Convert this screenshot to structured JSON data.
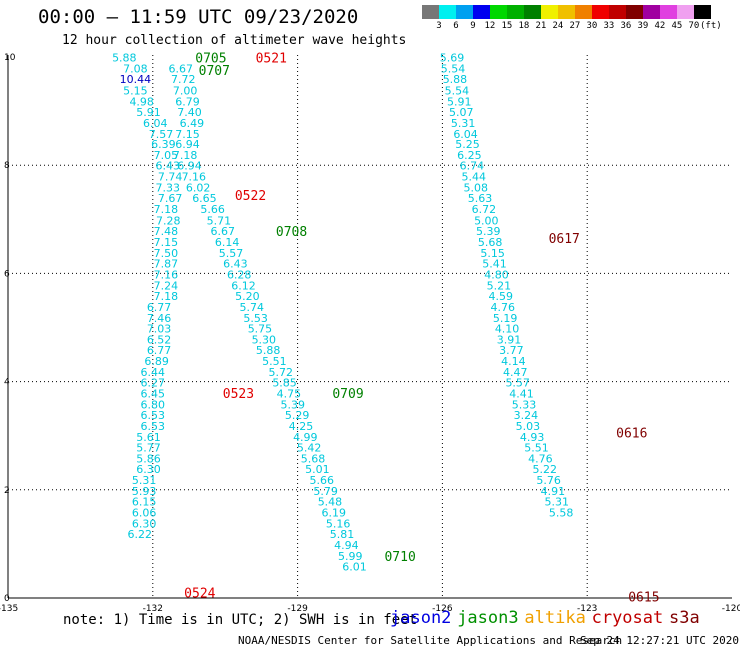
{
  "header": {
    "title": "00:00 – 11:59 UTC 09/23/2020",
    "subtitle": "12 hour collection of altimeter wave heights"
  },
  "legend": {
    "colors": [
      "#777777",
      "#00f0f0",
      "#00a0f0",
      "#0000f0",
      "#00d800",
      "#00b000",
      "#008000",
      "#f0f000",
      "#f0c000",
      "#f08000",
      "#f00000",
      "#c00000",
      "#800000",
      "#a000a0",
      "#e040e0",
      "#f0a0f0",
      "#000000"
    ],
    "labels": [
      "3",
      "6",
      "9",
      "12",
      "15",
      "18",
      "21",
      "24",
      "27",
      "30",
      "33",
      "36",
      "39",
      "42",
      "45",
      "70",
      "(ft)"
    ]
  },
  "note": "note: 1) Time is in UTC; 2) SWH is in feet",
  "satellites": [
    {
      "name": "jason2",
      "color": "#0000e0"
    },
    {
      "name": "jason3",
      "color": "#009000"
    },
    {
      "name": "altika",
      "color": "#f0a000"
    },
    {
      "name": "cryosat",
      "color": "#c00000"
    },
    {
      "name": "s3a",
      "color": "#800000"
    }
  ],
  "footer": {
    "credit": "NOAA/NESDIS Center for Satellite Applications and Research",
    "timestamp": "Sep 24 12:27:21 UTC 2020"
  },
  "chart_data": {
    "type": "scatter",
    "xlim": [
      -135,
      -120
    ],
    "ylim": [
      0,
      10
    ],
    "x_ticks": [
      -135,
      -132,
      -129,
      -126,
      -123,
      -120
    ],
    "y_ticks": [
      0,
      2,
      4,
      6,
      8,
      10
    ],
    "grid": true,
    "tracks": [
      {
        "name": "track-a",
        "points": [
          {
            "x": -132.59,
            "y": 9.99,
            "v": "5.88"
          },
          {
            "x": -132.36,
            "y": 9.79,
            "v": "7.08"
          },
          {
            "x": -132.36,
            "y": 9.59,
            "v": "10.44"
          },
          {
            "x": -132.36,
            "y": 9.38,
            "v": "5.15"
          },
          {
            "x": -132.23,
            "y": 9.18,
            "v": "4.98"
          },
          {
            "x": -132.09,
            "y": 8.98,
            "v": "5.91"
          },
          {
            "x": -131.95,
            "y": 8.78,
            "v": "6.04"
          },
          {
            "x": -131.83,
            "y": 8.58,
            "v": "7.57"
          },
          {
            "x": -131.78,
            "y": 8.39,
            "v": "6.39"
          },
          {
            "x": -131.73,
            "y": 8.19,
            "v": "7.05"
          },
          {
            "x": -131.69,
            "y": 7.99,
            "v": "6.43"
          },
          {
            "x": -131.64,
            "y": 7.79,
            "v": "7.74"
          },
          {
            "x": -131.69,
            "y": 7.59,
            "v": "7.33"
          },
          {
            "x": -131.64,
            "y": 7.39,
            "v": "7.67"
          },
          {
            "x": -131.73,
            "y": 7.19,
            "v": "7.18"
          },
          {
            "x": -131.68,
            "y": 6.98,
            "v": "7.28"
          },
          {
            "x": -131.73,
            "y": 6.78,
            "v": "7.48"
          },
          {
            "x": -131.73,
            "y": 6.58,
            "v": "7.15"
          },
          {
            "x": -131.73,
            "y": 6.38,
            "v": "7.50"
          },
          {
            "x": -131.73,
            "y": 6.18,
            "v": "7.87"
          },
          {
            "x": -131.73,
            "y": 5.98,
            "v": "7.16"
          },
          {
            "x": -131.73,
            "y": 5.78,
            "v": "7.24"
          },
          {
            "x": -131.73,
            "y": 5.58,
            "v": "7.18"
          },
          {
            "x": -131.87,
            "y": 5.38,
            "v": "6.77"
          },
          {
            "x": -131.87,
            "y": 5.18,
            "v": "7.46"
          },
          {
            "x": -131.87,
            "y": 4.98,
            "v": "7.03"
          },
          {
            "x": -131.87,
            "y": 4.78,
            "v": "6.52"
          },
          {
            "x": -131.87,
            "y": 4.58,
            "v": "6.77"
          },
          {
            "x": -131.92,
            "y": 4.38,
            "v": "6.89"
          },
          {
            "x": -132.0,
            "y": 4.18,
            "v": "6.44"
          },
          {
            "x": -132.0,
            "y": 3.98,
            "v": "6.27"
          },
          {
            "x": -132.0,
            "y": 3.78,
            "v": "6.45"
          },
          {
            "x": -132.0,
            "y": 3.58,
            "v": "6.80"
          },
          {
            "x": -132.0,
            "y": 3.38,
            "v": "6.53"
          },
          {
            "x": -132.0,
            "y": 3.18,
            "v": "6.53"
          },
          {
            "x": -132.09,
            "y": 2.98,
            "v": "5.61"
          },
          {
            "x": -132.09,
            "y": 2.78,
            "v": "5.77"
          },
          {
            "x": -132.09,
            "y": 2.58,
            "v": "5.86"
          },
          {
            "x": -132.09,
            "y": 2.38,
            "v": "6.30"
          },
          {
            "x": -132.18,
            "y": 2.18,
            "v": "5.31"
          },
          {
            "x": -132.18,
            "y": 1.98,
            "v": "5.93"
          },
          {
            "x": -132.18,
            "y": 1.78,
            "v": "6.15"
          },
          {
            "x": -132.18,
            "y": 1.58,
            "v": "6.06"
          },
          {
            "x": -132.18,
            "y": 1.38,
            "v": "6.30"
          },
          {
            "x": -132.27,
            "y": 1.18,
            "v": "6.22"
          }
        ]
      },
      {
        "name": "track-b",
        "points": [
          {
            "x": -131.42,
            "y": 9.79,
            "v": "6.67"
          },
          {
            "x": -131.37,
            "y": 9.59,
            "v": "7.72"
          },
          {
            "x": -131.33,
            "y": 9.38,
            "v": "7.00"
          },
          {
            "x": -131.28,
            "y": 9.18,
            "v": "6.79"
          },
          {
            "x": -131.24,
            "y": 8.98,
            "v": "7.40"
          },
          {
            "x": -131.19,
            "y": 8.78,
            "v": "6.49"
          },
          {
            "x": -131.28,
            "y": 8.58,
            "v": "7.15"
          },
          {
            "x": -131.28,
            "y": 8.39,
            "v": "6.94"
          },
          {
            "x": -131.33,
            "y": 8.19,
            "v": "7.18"
          },
          {
            "x": -131.24,
            "y": 7.99,
            "v": "6.94"
          },
          {
            "x": -131.15,
            "y": 7.79,
            "v": "7.16"
          },
          {
            "x": -131.06,
            "y": 7.59,
            "v": "6.02"
          },
          {
            "x": -130.93,
            "y": 7.39,
            "v": "6.65"
          },
          {
            "x": -130.76,
            "y": 7.19,
            "v": "5.66"
          },
          {
            "x": -130.63,
            "y": 6.98,
            "v": "5.71"
          },
          {
            "x": -130.55,
            "y": 6.78,
            "v": "6.67"
          },
          {
            "x": -130.46,
            "y": 6.58,
            "v": "6.14"
          },
          {
            "x": -130.38,
            "y": 6.38,
            "v": "5.57"
          },
          {
            "x": -130.29,
            "y": 6.18,
            "v": "6.43"
          },
          {
            "x": -130.21,
            "y": 5.98,
            "v": "6.28"
          },
          {
            "x": -130.12,
            "y": 5.78,
            "v": "6.12"
          },
          {
            "x": -130.04,
            "y": 5.58,
            "v": "5.20"
          },
          {
            "x": -129.95,
            "y": 5.38,
            "v": "5.74"
          },
          {
            "x": -129.87,
            "y": 5.18,
            "v": "5.53"
          },
          {
            "x": -129.78,
            "y": 4.98,
            "v": "5.75"
          },
          {
            "x": -129.7,
            "y": 4.78,
            "v": "5.30"
          },
          {
            "x": -129.61,
            "y": 4.58,
            "v": "5.88"
          },
          {
            "x": -129.48,
            "y": 4.38,
            "v": "5.51"
          },
          {
            "x": -129.35,
            "y": 4.18,
            "v": "5.72"
          },
          {
            "x": -129.27,
            "y": 3.98,
            "v": "5.85"
          },
          {
            "x": -129.18,
            "y": 3.78,
            "v": "4.75"
          },
          {
            "x": -129.1,
            "y": 3.58,
            "v": "5.39"
          },
          {
            "x": -129.01,
            "y": 3.38,
            "v": "5.29"
          },
          {
            "x": -128.93,
            "y": 3.18,
            "v": "4.25"
          },
          {
            "x": -128.84,
            "y": 2.98,
            "v": "4.99"
          },
          {
            "x": -128.76,
            "y": 2.78,
            "v": "5.42"
          },
          {
            "x": -128.68,
            "y": 2.58,
            "v": "5.68"
          },
          {
            "x": -128.59,
            "y": 2.38,
            "v": "5.01"
          },
          {
            "x": -128.5,
            "y": 2.18,
            "v": "5.66"
          },
          {
            "x": -128.42,
            "y": 1.98,
            "v": "5.79"
          },
          {
            "x": -128.33,
            "y": 1.78,
            "v": "5.48"
          },
          {
            "x": -128.25,
            "y": 1.58,
            "v": "6.19"
          },
          {
            "x": -128.16,
            "y": 1.38,
            "v": "5.16"
          },
          {
            "x": -128.08,
            "y": 1.18,
            "v": "5.81"
          },
          {
            "x": -127.99,
            "y": 0.98,
            "v": "4.94"
          },
          {
            "x": -127.91,
            "y": 0.78,
            "v": "5.99"
          },
          {
            "x": -127.82,
            "y": 0.58,
            "v": "6.01"
          }
        ]
      },
      {
        "name": "track-c",
        "points": [
          {
            "x": -125.8,
            "y": 9.99,
            "v": "5.69"
          },
          {
            "x": -125.78,
            "y": 9.79,
            "v": "5.54"
          },
          {
            "x": -125.74,
            "y": 9.59,
            "v": "5.88"
          },
          {
            "x": -125.7,
            "y": 9.38,
            "v": "5.54"
          },
          {
            "x": -125.65,
            "y": 9.18,
            "v": "5.91"
          },
          {
            "x": -125.61,
            "y": 8.98,
            "v": "5.07"
          },
          {
            "x": -125.57,
            "y": 8.78,
            "v": "5.31"
          },
          {
            "x": -125.52,
            "y": 8.58,
            "v": "6.04"
          },
          {
            "x": -125.48,
            "y": 8.39,
            "v": "5.25"
          },
          {
            "x": -125.44,
            "y": 8.19,
            "v": "6.25"
          },
          {
            "x": -125.39,
            "y": 7.99,
            "v": "6.74"
          },
          {
            "x": -125.35,
            "y": 7.79,
            "v": "5.44"
          },
          {
            "x": -125.31,
            "y": 7.59,
            "v": "5.08"
          },
          {
            "x": -125.22,
            "y": 7.39,
            "v": "5.63"
          },
          {
            "x": -125.14,
            "y": 7.19,
            "v": "6.72"
          },
          {
            "x": -125.09,
            "y": 6.98,
            "v": "5.00"
          },
          {
            "x": -125.05,
            "y": 6.78,
            "v": "5.39"
          },
          {
            "x": -125.01,
            "y": 6.58,
            "v": "5.68"
          },
          {
            "x": -124.96,
            "y": 6.38,
            "v": "5.15"
          },
          {
            "x": -124.92,
            "y": 6.18,
            "v": "5.41"
          },
          {
            "x": -124.88,
            "y": 5.98,
            "v": "4.80"
          },
          {
            "x": -124.83,
            "y": 5.78,
            "v": "5.21"
          },
          {
            "x": -124.79,
            "y": 5.58,
            "v": "4.59"
          },
          {
            "x": -124.75,
            "y": 5.38,
            "v": "4.76"
          },
          {
            "x": -124.7,
            "y": 5.18,
            "v": "5.19"
          },
          {
            "x": -124.66,
            "y": 4.98,
            "v": "4.10"
          },
          {
            "x": -124.62,
            "y": 4.78,
            "v": "3.91"
          },
          {
            "x": -124.57,
            "y": 4.58,
            "v": "3.77"
          },
          {
            "x": -124.53,
            "y": 4.38,
            "v": "4.14"
          },
          {
            "x": -124.49,
            "y": 4.18,
            "v": "4.47"
          },
          {
            "x": -124.44,
            "y": 3.98,
            "v": "5.57"
          },
          {
            "x": -124.36,
            "y": 3.78,
            "v": "4.41"
          },
          {
            "x": -124.31,
            "y": 3.58,
            "v": "5.33"
          },
          {
            "x": -124.27,
            "y": 3.38,
            "v": "3.24"
          },
          {
            "x": -124.23,
            "y": 3.18,
            "v": "5.03"
          },
          {
            "x": -124.14,
            "y": 2.98,
            "v": "4.93"
          },
          {
            "x": -124.05,
            "y": 2.78,
            "v": "5.51"
          },
          {
            "x": -123.97,
            "y": 2.58,
            "v": "4.76"
          },
          {
            "x": -123.88,
            "y": 2.38,
            "v": "5.22"
          },
          {
            "x": -123.8,
            "y": 2.18,
            "v": "5.76"
          },
          {
            "x": -123.71,
            "y": 1.98,
            "v": "4.91"
          },
          {
            "x": -123.63,
            "y": 1.78,
            "v": "5.31"
          },
          {
            "x": -123.54,
            "y": 1.58,
            "v": "5.58"
          }
        ]
      }
    ],
    "time_labels": [
      {
        "text": "0705",
        "x": -131.12,
        "y": 9.99,
        "color": "#008000"
      },
      {
        "text": "0521",
        "x": -129.87,
        "y": 9.99,
        "color": "#e00000"
      },
      {
        "text": "0707",
        "x": -131.05,
        "y": 9.76,
        "color": "#008000"
      },
      {
        "text": "0522",
        "x": -130.3,
        "y": 7.45,
        "color": "#e00000"
      },
      {
        "text": "0708",
        "x": -129.45,
        "y": 6.78,
        "color": "#008000"
      },
      {
        "text": "0617",
        "x": -123.8,
        "y": 6.65,
        "color": "#800000"
      },
      {
        "text": "0523",
        "x": -130.55,
        "y": 3.79,
        "color": "#e00000"
      },
      {
        "text": "0709",
        "x": -128.28,
        "y": 3.79,
        "color": "#008000"
      },
      {
        "text": "0616",
        "x": -122.4,
        "y": 3.06,
        "color": "#800000"
      },
      {
        "text": "0710",
        "x": -127.2,
        "y": 0.78,
        "color": "#008000"
      },
      {
        "text": "0524",
        "x": -131.35,
        "y": 0.1,
        "color": "#e00000"
      },
      {
        "text": "0615",
        "x": -122.15,
        "y": 0.03,
        "color": "#800000"
      }
    ]
  }
}
